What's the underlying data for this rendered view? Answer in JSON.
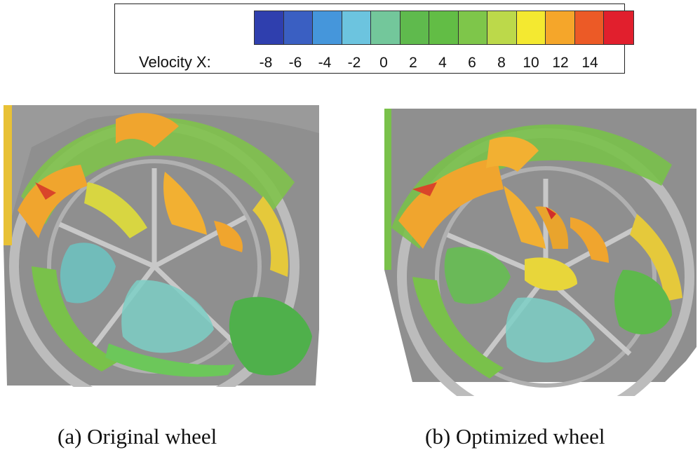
{
  "legend": {
    "label": "Velocity X:",
    "ticks": [
      "-8",
      "-6",
      "-4",
      "-2",
      "0",
      "2",
      "4",
      "6",
      "8",
      "10",
      "12",
      "14"
    ],
    "colors": [
      "#2f3fae",
      "#3a5fc2",
      "#4596db",
      "#6cc4df",
      "#73c79b",
      "#5fba4d",
      "#62bd45",
      "#7ec64a",
      "#bcd94a",
      "#f4e930",
      "#f5a62a",
      "#ec5a26",
      "#e11f2d"
    ]
  },
  "panels": [
    {
      "caption": "(a) Original wheel"
    },
    {
      "caption": "(b) Optimized wheel"
    }
  ]
}
